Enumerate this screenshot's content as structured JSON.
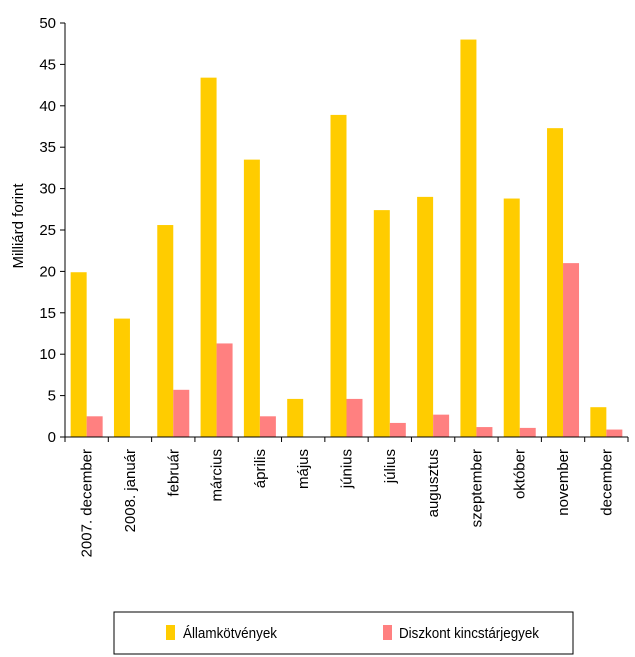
{
  "chart_data": {
    "type": "bar",
    "title": "",
    "xlabel": "",
    "ylabel": "Milliárd forint",
    "ylim": [
      0,
      50
    ],
    "yticks": [
      0,
      5,
      10,
      15,
      20,
      25,
      30,
      35,
      40,
      45,
      50
    ],
    "grid": false,
    "legend_position": "bottom",
    "categories": [
      "2007. december",
      "2008. január",
      "február",
      "március",
      "április",
      "május",
      "június",
      "július",
      "augusztus",
      "szeptember",
      "október",
      "november",
      "december"
    ],
    "series": [
      {
        "name": "Államkötvények",
        "color": "#FFCC00",
        "values": [
          19.9,
          14.3,
          25.6,
          43.4,
          33.5,
          4.6,
          38.9,
          27.4,
          29.0,
          48.0,
          28.8,
          37.3,
          3.6
        ]
      },
      {
        "name": "Diszkont kincstárjegyek",
        "color": "#FF8080",
        "values": [
          2.5,
          0,
          5.7,
          11.3,
          2.5,
          0,
          4.6,
          1.7,
          2.7,
          1.2,
          1.1,
          21.0,
          0.9
        ]
      }
    ]
  }
}
